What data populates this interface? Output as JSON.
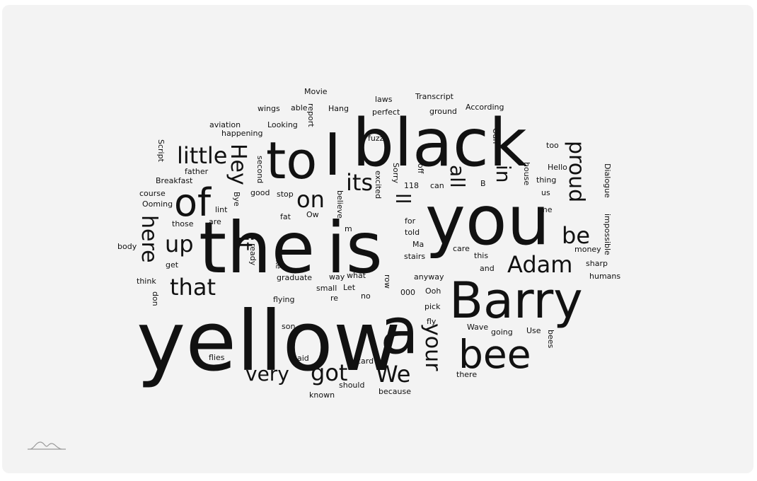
{
  "colors": {
    "panel": "#f3f3f3",
    "text": "#111111",
    "logo": "#9a9a9a"
  },
  "icons": {
    "logo": "wave-logo-icon"
  },
  "chart_data": {
    "type": "wordcloud",
    "words": [
      {
        "text": "yellow",
        "weight": 100
      },
      {
        "text": "is",
        "weight": 95
      },
      {
        "text": "the",
        "weight": 95
      },
      {
        "text": "black",
        "weight": 93
      },
      {
        "text": "you",
        "weight": 90
      },
      {
        "text": "a",
        "weight": 85
      },
      {
        "text": "Barry",
        "weight": 78
      },
      {
        "text": "to",
        "weight": 70
      },
      {
        "text": "bee",
        "weight": 58
      },
      {
        "text": "I",
        "weight": 55
      },
      {
        "text": "of",
        "weight": 55
      },
      {
        "text": "here",
        "weight": 40
      },
      {
        "text": "Hey",
        "weight": 40
      },
      {
        "text": "proud",
        "weight": 40
      },
      {
        "text": "your",
        "weight": 40
      },
      {
        "text": "little",
        "weight": 38
      },
      {
        "text": "that",
        "weight": 38
      },
      {
        "text": "it",
        "weight": 38
      },
      {
        "text": "We",
        "weight": 38
      },
      {
        "text": "Adam",
        "weight": 36
      },
      {
        "text": "got",
        "weight": 36
      },
      {
        "text": "its",
        "weight": 36
      },
      {
        "text": "on",
        "weight": 36
      },
      {
        "text": "up",
        "weight": 36
      },
      {
        "text": "be",
        "weight": 36
      },
      {
        "text": "very",
        "weight": 33
      },
      {
        "text": "all",
        "weight": 33
      },
      {
        "text": "in",
        "weight": 33
      },
      {
        "text": "ll",
        "weight": 33
      },
      {
        "text": "Movie",
        "weight": 12
      },
      {
        "text": "Transcript",
        "weight": 12
      },
      {
        "text": "laws",
        "weight": 12
      },
      {
        "text": "able",
        "weight": 12
      },
      {
        "text": "wings",
        "weight": 12
      },
      {
        "text": "report",
        "weight": 12
      },
      {
        "text": "Hang",
        "weight": 12
      },
      {
        "text": "perfect",
        "weight": 12
      },
      {
        "text": "ground",
        "weight": 12
      },
      {
        "text": "According",
        "weight": 12
      },
      {
        "text": "aviation",
        "weight": 12
      },
      {
        "text": "Looking",
        "weight": 12
      },
      {
        "text": "happening",
        "weight": 12
      },
      {
        "text": "fuzz",
        "weight": 12
      },
      {
        "text": "Oan",
        "weight": 12
      },
      {
        "text": "too",
        "weight": 12
      },
      {
        "text": "Script",
        "weight": 12
      },
      {
        "text": "father",
        "weight": 12
      },
      {
        "text": "second",
        "weight": 12
      },
      {
        "text": "Sorry",
        "weight": 12
      },
      {
        "text": "off",
        "weight": 12
      },
      {
        "text": "Hello",
        "weight": 12
      },
      {
        "text": "house",
        "weight": 12
      },
      {
        "text": "thing",
        "weight": 12
      },
      {
        "text": "Dialogue",
        "weight": 12
      },
      {
        "text": "Breakfast",
        "weight": 12
      },
      {
        "text": "excited",
        "weight": 12
      },
      {
        "text": "118",
        "weight": 12
      },
      {
        "text": "can",
        "weight": 12
      },
      {
        "text": "B",
        "weight": 12
      },
      {
        "text": "us",
        "weight": 12
      },
      {
        "text": "course",
        "weight": 12
      },
      {
        "text": "good",
        "weight": 12
      },
      {
        "text": "stop",
        "weight": 12
      },
      {
        "text": "Ooming",
        "weight": 12
      },
      {
        "text": "Bye",
        "weight": 12
      },
      {
        "text": "believe",
        "weight": 12
      },
      {
        "text": "lint",
        "weight": 12
      },
      {
        "text": "me",
        "weight": 12
      },
      {
        "text": "fat",
        "weight": 12
      },
      {
        "text": "Ow",
        "weight": 12
      },
      {
        "text": "for",
        "weight": 12
      },
      {
        "text": "impossible",
        "weight": 12
      },
      {
        "text": "those",
        "weight": 12
      },
      {
        "text": "are",
        "weight": 12
      },
      {
        "text": "m",
        "weight": 12
      },
      {
        "text": "told",
        "weight": 12
      },
      {
        "text": "body",
        "weight": 12
      },
      {
        "text": "ready",
        "weight": 12
      },
      {
        "text": "Ma",
        "weight": 12
      },
      {
        "text": "care",
        "weight": 12
      },
      {
        "text": "money",
        "weight": 12
      },
      {
        "text": "shake",
        "weight": 12
      },
      {
        "text": "stairs",
        "weight": 12
      },
      {
        "text": "this",
        "weight": 12
      },
      {
        "text": "sharp",
        "weight": 12
      },
      {
        "text": "get",
        "weight": 12
      },
      {
        "text": "and",
        "weight": 12
      },
      {
        "text": "think",
        "weight": 12
      },
      {
        "text": "graduate",
        "weight": 12
      },
      {
        "text": "way",
        "weight": 12
      },
      {
        "text": "what",
        "weight": 12
      },
      {
        "text": "anyway",
        "weight": 12
      },
      {
        "text": "humans",
        "weight": 12
      },
      {
        "text": "row",
        "weight": 12
      },
      {
        "text": "small",
        "weight": 12
      },
      {
        "text": "Let",
        "weight": 12
      },
      {
        "text": "don",
        "weight": 12
      },
      {
        "text": "flying",
        "weight": 12
      },
      {
        "text": "re",
        "weight": 12
      },
      {
        "text": "no",
        "weight": 12
      },
      {
        "text": "000",
        "weight": 12
      },
      {
        "text": "Ooh",
        "weight": 12
      },
      {
        "text": "pick",
        "weight": 12
      },
      {
        "text": "fly",
        "weight": 12
      },
      {
        "text": "son",
        "weight": 12
      },
      {
        "text": "Wave",
        "weight": 12
      },
      {
        "text": "going",
        "weight": 12
      },
      {
        "text": "Use",
        "weight": 12
      },
      {
        "text": "bees",
        "weight": 12
      },
      {
        "text": "flies",
        "weight": 12
      },
      {
        "text": "paid",
        "weight": 12
      },
      {
        "text": "card",
        "weight": 12
      },
      {
        "text": "there",
        "weight": 12
      },
      {
        "text": "should",
        "weight": 12
      },
      {
        "text": "because",
        "weight": 12
      },
      {
        "text": "known",
        "weight": 12
      }
    ]
  }
}
